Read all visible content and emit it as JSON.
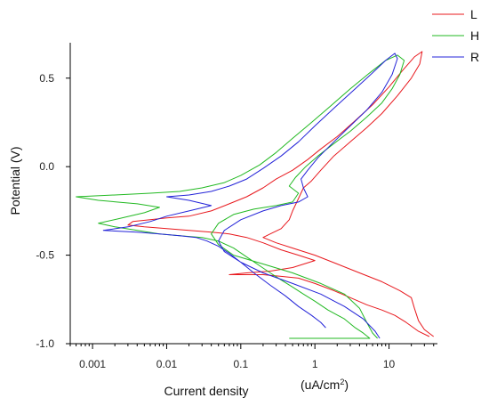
{
  "chart_data": {
    "type": "line",
    "xscale": "log",
    "xlim": [
      0.0005,
      45
    ],
    "ylim": [
      -1.0,
      0.7
    ],
    "grid": false,
    "legend_position": "top-right",
    "ylabel": "Potential (V)",
    "xlabel": "Current density",
    "xunit_prefix": "(uA/cm",
    "xunit_sup": "2",
    "xunit_suffix": ")",
    "x_ticks": [
      {
        "value": 0.001,
        "label": "0.001"
      },
      {
        "value": 0.01,
        "label": "0.01"
      },
      {
        "value": 0.1,
        "label": "0.1"
      },
      {
        "value": 1,
        "label": "1"
      },
      {
        "value": 10,
        "label": "10"
      }
    ],
    "y_ticks": [
      {
        "value": 0.5,
        "label": "0.5"
      },
      {
        "value": 0.0,
        "label": "0.0"
      },
      {
        "value": -0.5,
        "label": "-0.5"
      },
      {
        "value": -1.0,
        "label": "-1.0"
      }
    ],
    "series": [
      {
        "name": "L",
        "color": "#e8191e",
        "points": [
          [
            35,
            -0.96
          ],
          [
            25,
            -0.93
          ],
          [
            17,
            -0.88
          ],
          [
            12,
            -0.84
          ],
          [
            8,
            -0.81
          ],
          [
            5,
            -0.78
          ],
          [
            3,
            -0.74
          ],
          [
            1.8,
            -0.7
          ],
          [
            1.0,
            -0.66
          ],
          [
            0.6,
            -0.63
          ],
          [
            0.35,
            -0.62
          ],
          [
            0.2,
            -0.61
          ],
          [
            0.12,
            -0.61
          ],
          [
            0.07,
            -0.61
          ],
          [
            0.12,
            -0.6
          ],
          [
            0.25,
            -0.59
          ],
          [
            0.5,
            -0.57
          ],
          [
            1.0,
            -0.53
          ],
          [
            0.6,
            -0.5
          ],
          [
            0.35,
            -0.47
          ],
          [
            0.2,
            -0.43
          ],
          [
            0.12,
            -0.4
          ],
          [
            0.07,
            -0.38
          ],
          [
            0.04,
            -0.37
          ],
          [
            0.02,
            -0.36
          ],
          [
            0.01,
            -0.35
          ],
          [
            0.005,
            -0.34
          ],
          [
            0.003,
            -0.33
          ],
          [
            0.0035,
            -0.31
          ],
          [
            0.006,
            -0.3
          ],
          [
            0.01,
            -0.29
          ],
          [
            0.02,
            -0.28
          ],
          [
            0.04,
            -0.25
          ],
          [
            0.07,
            -0.21
          ],
          [
            0.12,
            -0.17
          ],
          [
            0.2,
            -0.12
          ],
          [
            0.3,
            -0.07
          ],
          [
            0.5,
            -0.02
          ],
          [
            0.8,
            0.04
          ],
          [
            1.2,
            0.1
          ],
          [
            2.0,
            0.17
          ],
          [
            3.5,
            0.26
          ],
          [
            6,
            0.35
          ],
          [
            10,
            0.45
          ],
          [
            15,
            0.54
          ],
          [
            22,
            0.62
          ],
          [
            28,
            0.65
          ],
          [
            26,
            0.58
          ],
          [
            20,
            0.5
          ],
          [
            13,
            0.4
          ],
          [
            8,
            0.3
          ],
          [
            5,
            0.22
          ],
          [
            3,
            0.14
          ],
          [
            1.8,
            0.06
          ],
          [
            1.2,
            -0.02
          ],
          [
            0.9,
            -0.08
          ],
          [
            0.7,
            -0.12
          ],
          [
            0.6,
            -0.18
          ],
          [
            0.5,
            -0.25
          ],
          [
            0.45,
            -0.3
          ],
          [
            0.35,
            -0.35
          ],
          [
            0.25,
            -0.38
          ],
          [
            0.2,
            -0.4
          ],
          [
            0.3,
            -0.43
          ],
          [
            0.5,
            -0.46
          ],
          [
            1.0,
            -0.5
          ],
          [
            2.0,
            -0.55
          ],
          [
            4.0,
            -0.6
          ],
          [
            8,
            -0.65
          ],
          [
            14,
            -0.7
          ],
          [
            20,
            -0.74
          ],
          [
            22,
            -0.8
          ],
          [
            25,
            -0.87
          ],
          [
            30,
            -0.92
          ],
          [
            40,
            -0.96
          ]
        ]
      },
      {
        "name": "H",
        "color": "#22b922",
        "points": [
          [
            0.45,
            -0.97
          ],
          [
            5.5,
            -0.97
          ],
          [
            4.5,
            -0.94
          ],
          [
            3.5,
            -0.91
          ],
          [
            2.5,
            -0.86
          ],
          [
            1.5,
            -0.81
          ],
          [
            1.0,
            -0.76
          ],
          [
            0.7,
            -0.72
          ],
          [
            0.5,
            -0.68
          ],
          [
            0.35,
            -0.64
          ],
          [
            0.25,
            -0.6
          ],
          [
            0.18,
            -0.56
          ],
          [
            0.12,
            -0.51
          ],
          [
            0.08,
            -0.46
          ],
          [
            0.05,
            -0.42
          ],
          [
            0.03,
            -0.4
          ],
          [
            0.015,
            -0.39
          ],
          [
            0.008,
            -0.38
          ],
          [
            0.004,
            -0.36
          ],
          [
            0.002,
            -0.34
          ],
          [
            0.0012,
            -0.32
          ],
          [
            0.0025,
            -0.29
          ],
          [
            0.005,
            -0.26
          ],
          [
            0.008,
            -0.23
          ],
          [
            0.004,
            -0.21
          ],
          [
            0.0012,
            -0.19
          ],
          [
            0.0006,
            -0.17
          ],
          [
            0.002,
            -0.16
          ],
          [
            0.006,
            -0.15
          ],
          [
            0.015,
            -0.14
          ],
          [
            0.03,
            -0.12
          ],
          [
            0.06,
            -0.09
          ],
          [
            0.1,
            -0.05
          ],
          [
            0.18,
            0.01
          ],
          [
            0.3,
            0.08
          ],
          [
            0.5,
            0.16
          ],
          [
            0.9,
            0.25
          ],
          [
            1.6,
            0.34
          ],
          [
            3.0,
            0.44
          ],
          [
            5.5,
            0.53
          ],
          [
            9,
            0.6
          ],
          [
            13,
            0.63
          ],
          [
            16,
            0.6
          ],
          [
            14,
            0.52
          ],
          [
            11,
            0.44
          ],
          [
            8,
            0.36
          ],
          [
            5,
            0.28
          ],
          [
            3,
            0.2
          ],
          [
            1.8,
            0.13
          ],
          [
            1.1,
            0.06
          ],
          [
            0.75,
            0.0
          ],
          [
            0.55,
            -0.06
          ],
          [
            0.45,
            -0.11
          ],
          [
            0.6,
            -0.15
          ],
          [
            0.5,
            -0.2
          ],
          [
            0.3,
            -0.22
          ],
          [
            0.15,
            -0.24
          ],
          [
            0.08,
            -0.27
          ],
          [
            0.05,
            -0.32
          ],
          [
            0.04,
            -0.38
          ],
          [
            0.05,
            -0.44
          ],
          [
            0.08,
            -0.5
          ],
          [
            0.2,
            -0.55
          ],
          [
            0.5,
            -0.6
          ],
          [
            1.2,
            -0.66
          ],
          [
            2.5,
            -0.72
          ],
          [
            4.0,
            -0.8
          ],
          [
            5.0,
            -0.88
          ],
          [
            6.0,
            -0.94
          ],
          [
            7.0,
            -0.97
          ]
        ]
      },
      {
        "name": "R",
        "color": "#2323d8",
        "points": [
          [
            1.4,
            -0.91
          ],
          [
            1.2,
            -0.88
          ],
          [
            0.9,
            -0.84
          ],
          [
            0.6,
            -0.79
          ],
          [
            0.4,
            -0.73
          ],
          [
            0.25,
            -0.67
          ],
          [
            0.15,
            -0.6
          ],
          [
            0.1,
            -0.54
          ],
          [
            0.07,
            -0.49
          ],
          [
            0.05,
            -0.45
          ],
          [
            0.035,
            -0.42
          ],
          [
            0.025,
            -0.4
          ],
          [
            0.015,
            -0.39
          ],
          [
            0.008,
            -0.38
          ],
          [
            0.004,
            -0.37
          ],
          [
            0.0014,
            -0.36
          ],
          [
            0.003,
            -0.34
          ],
          [
            0.006,
            -0.31
          ],
          [
            0.01,
            -0.28
          ],
          [
            0.02,
            -0.25
          ],
          [
            0.04,
            -0.22
          ],
          [
            0.02,
            -0.19
          ],
          [
            0.01,
            -0.17
          ],
          [
            0.02,
            -0.16
          ],
          [
            0.04,
            -0.14
          ],
          [
            0.07,
            -0.11
          ],
          [
            0.12,
            -0.07
          ],
          [
            0.2,
            -0.01
          ],
          [
            0.35,
            0.06
          ],
          [
            0.6,
            0.14
          ],
          [
            1.0,
            0.23
          ],
          [
            1.8,
            0.33
          ],
          [
            3.5,
            0.44
          ],
          [
            6,
            0.53
          ],
          [
            9,
            0.6
          ],
          [
            12,
            0.64
          ],
          [
            13,
            0.61
          ],
          [
            11,
            0.52
          ],
          [
            8,
            0.42
          ],
          [
            5,
            0.32
          ],
          [
            3,
            0.23
          ],
          [
            1.8,
            0.14
          ],
          [
            1.1,
            0.05
          ],
          [
            0.8,
            -0.02
          ],
          [
            0.65,
            -0.07
          ],
          [
            0.7,
            -0.12
          ],
          [
            0.8,
            -0.17
          ],
          [
            0.6,
            -0.2
          ],
          [
            0.35,
            -0.22
          ],
          [
            0.2,
            -0.25
          ],
          [
            0.1,
            -0.3
          ],
          [
            0.06,
            -0.36
          ],
          [
            0.05,
            -0.42
          ],
          [
            0.06,
            -0.48
          ],
          [
            0.1,
            -0.54
          ],
          [
            0.2,
            -0.6
          ],
          [
            0.5,
            -0.66
          ],
          [
            1.2,
            -0.72
          ],
          [
            2.5,
            -0.79
          ],
          [
            4.5,
            -0.86
          ],
          [
            6.5,
            -0.93
          ],
          [
            7.5,
            -0.97
          ]
        ]
      }
    ]
  }
}
